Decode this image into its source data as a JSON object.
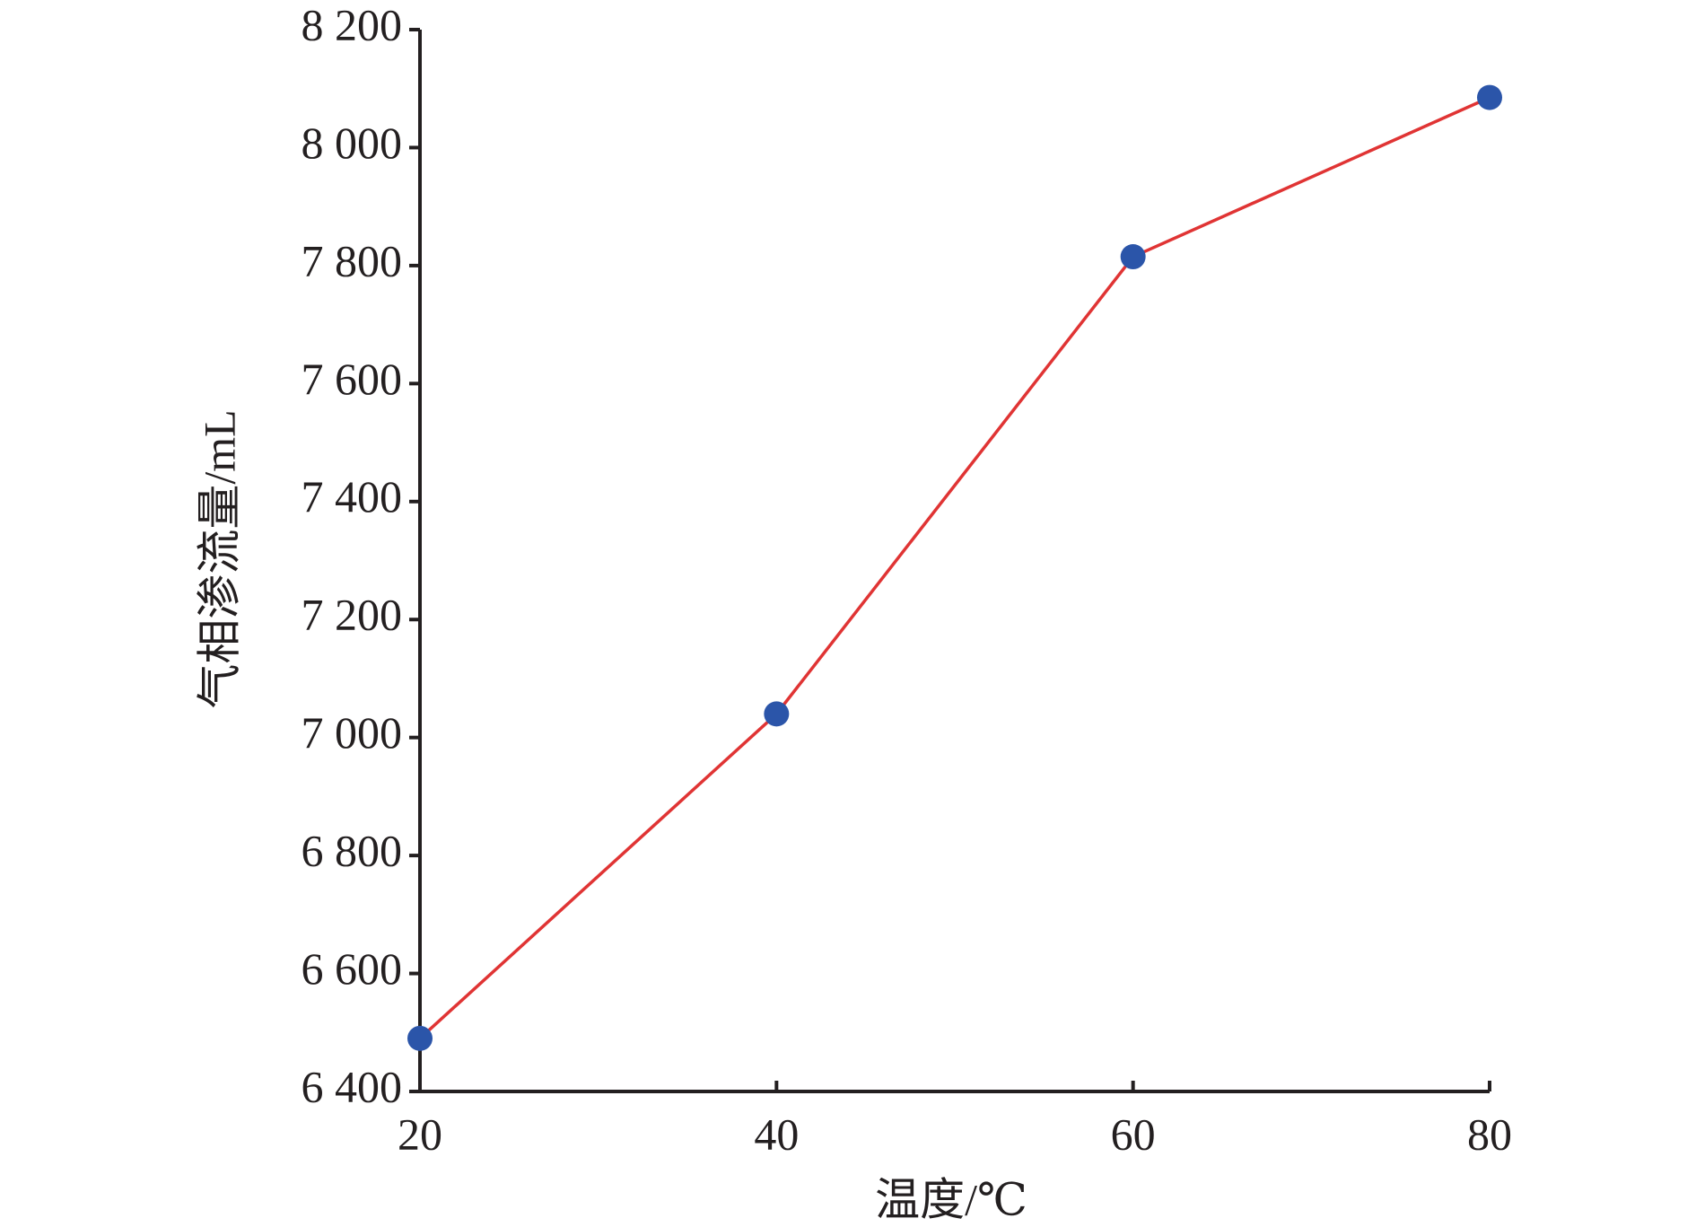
{
  "chart_data": {
    "type": "line",
    "x_label": "温度/℃",
    "y_label": "气相渗流量/mL",
    "x": [
      20,
      40,
      60,
      80
    ],
    "series": [
      {
        "values": [
          6490,
          7040,
          7815,
          8085
        ],
        "color": "#e03434",
        "marker_color": "#2b55a9"
      }
    ],
    "xlim": [
      20,
      80
    ],
    "xticks": [
      20,
      40,
      60,
      80
    ],
    "ylim": [
      6400,
      8200
    ],
    "yticks": [
      {
        "value": 6400,
        "label": "6 400"
      },
      {
        "value": 6600,
        "label": "6 600"
      },
      {
        "value": 6800,
        "label": "6 800"
      },
      {
        "value": 7000,
        "label": "7 000"
      },
      {
        "value": 7200,
        "label": "7 200"
      },
      {
        "value": 7400,
        "label": "7 400"
      },
      {
        "value": 7600,
        "label": "7 600"
      },
      {
        "value": 7800,
        "label": "7 800"
      },
      {
        "value": 8000,
        "label": "8 000"
      },
      {
        "value": 8200,
        "label": "8 200"
      }
    ],
    "grid": false
  }
}
